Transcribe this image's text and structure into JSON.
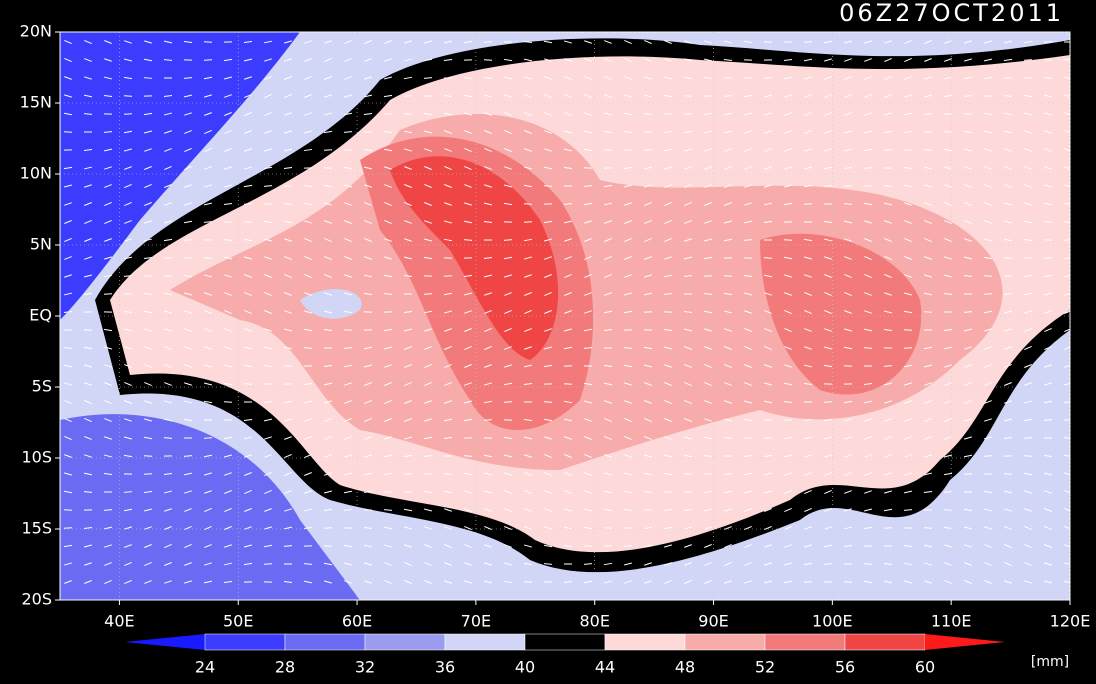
{
  "chart_data": {
    "type": "map",
    "title": "06Z27OCT2011",
    "xlim": [
      35,
      120
    ],
    "ylim": [
      -20,
      20
    ],
    "xticks": [
      {
        "value": 40,
        "label": "40E"
      },
      {
        "value": 50,
        "label": "50E"
      },
      {
        "value": 60,
        "label": "60E"
      },
      {
        "value": 70,
        "label": "70E"
      },
      {
        "value": 80,
        "label": "80E"
      },
      {
        "value": 90,
        "label": "90E"
      },
      {
        "value": 100,
        "label": "100E"
      },
      {
        "value": 110,
        "label": "110E"
      },
      {
        "value": 120,
        "label": "120E"
      }
    ],
    "yticks": [
      {
        "value": 20,
        "label": "20N"
      },
      {
        "value": 15,
        "label": "15N"
      },
      {
        "value": 10,
        "label": "10N"
      },
      {
        "value": 5,
        "label": "5N"
      },
      {
        "value": 0,
        "label": "EQ"
      },
      {
        "value": -5,
        "label": "5S"
      },
      {
        "value": -10,
        "label": "10S"
      },
      {
        "value": -15,
        "label": "15S"
      },
      {
        "value": -20,
        "label": "20S"
      }
    ],
    "colorbar": {
      "levels": [
        24,
        28,
        32,
        36,
        40,
        44,
        48,
        52,
        56,
        60
      ],
      "colors": [
        "#1a1aff",
        "#3c3cff",
        "#6a6af2",
        "#9c9cee",
        "#d2d6f6",
        "#000000",
        "#fdd9d9",
        "#f7abab",
        "#f27a7a",
        "#ef4545",
        "#ff1a1a"
      ],
      "unit": "[mm]"
    }
  }
}
